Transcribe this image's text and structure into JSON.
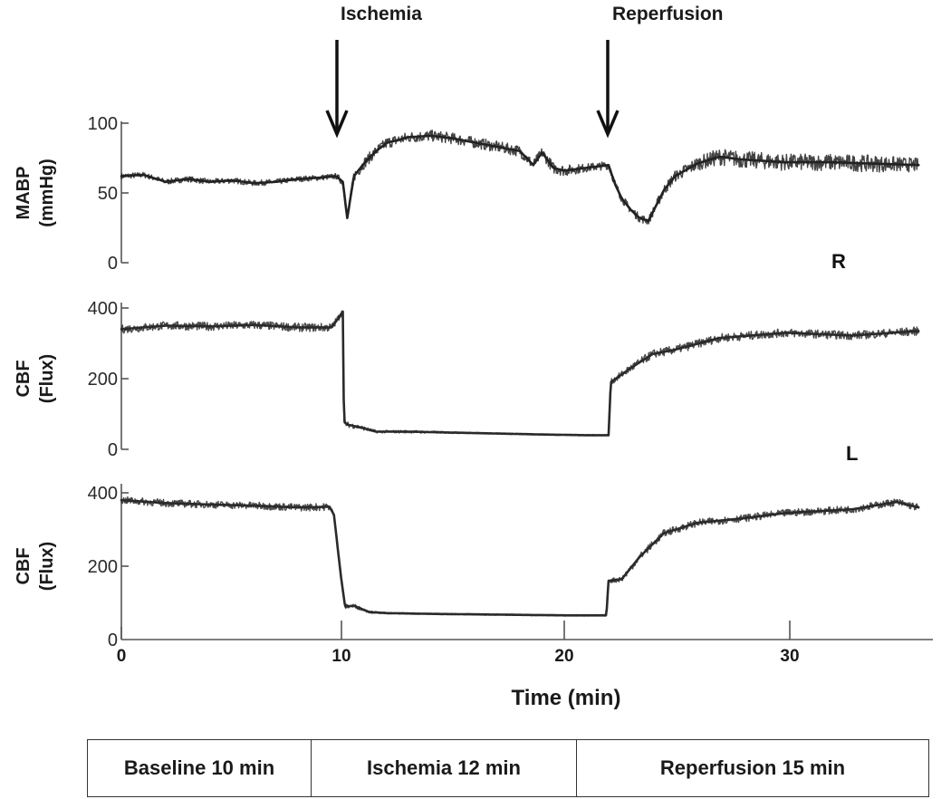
{
  "annotations": {
    "ischemia": "Ischemia",
    "reperfusion": "Reperfusion",
    "event_times_min": [
      10,
      22
    ]
  },
  "chart_data": [
    {
      "type": "line",
      "panel": "MABP",
      "ylabel_line1": "MABP",
      "ylabel_line2": "(mmHg)",
      "side_label": "R",
      "yticks": [
        "0",
        "50",
        "100"
      ],
      "ylim": [
        0,
        100
      ],
      "xlim": [
        0,
        36
      ],
      "x": [
        0,
        1,
        2,
        3,
        4,
        5,
        6,
        7,
        8,
        9,
        9.7,
        10,
        10.2,
        10.5,
        11,
        11.5,
        12,
        13,
        14,
        15,
        16,
        17,
        18,
        18.6,
        19,
        19.5,
        20,
        21,
        22,
        22.3,
        22.6,
        23,
        23.4,
        23.8,
        24.5,
        25,
        26,
        27,
        28,
        30,
        32,
        34,
        36
      ],
      "y": [
        62,
        63,
        58,
        60,
        58,
        59,
        57,
        58,
        60,
        61,
        62,
        58,
        32,
        62,
        72,
        80,
        86,
        90,
        91,
        89,
        86,
        83,
        80,
        70,
        79,
        68,
        66,
        68,
        70,
        56,
        46,
        38,
        32,
        30,
        52,
        62,
        71,
        76,
        74,
        72,
        72,
        71,
        70
      ],
      "noise": [
        2,
        2,
        2,
        2,
        2,
        2,
        2,
        2,
        2,
        2,
        2,
        3,
        3,
        4,
        4,
        4,
        4,
        4,
        4,
        4,
        4,
        4,
        4,
        4,
        4,
        4,
        4,
        3,
        3,
        3,
        3,
        3,
        3,
        3,
        4,
        4,
        5,
        6,
        6,
        6,
        6,
        6,
        5
      ],
      "color": "#222222"
    },
    {
      "type": "line",
      "panel": "CBF-R",
      "ylabel_line1": "CBF",
      "ylabel_line2": "(Flux)",
      "side_label": "L",
      "yticks": [
        "0",
        "200",
        "400"
      ],
      "ylim": [
        0,
        400
      ],
      "xlim": [
        0,
        36
      ],
      "x": [
        0,
        2,
        4,
        6,
        8,
        9.5,
        10,
        10.05,
        10.2,
        10.8,
        11.5,
        13,
        16,
        19,
        21,
        22,
        22.1,
        23,
        24,
        25,
        27,
        30,
        33,
        36
      ],
      "y": [
        340,
        350,
        348,
        352,
        345,
        345,
        390,
        78,
        70,
        62,
        50,
        50,
        46,
        42,
        40,
        40,
        190,
        230,
        270,
        282,
        315,
        330,
        322,
        335
      ],
      "noise": [
        12,
        12,
        12,
        12,
        12,
        12,
        8,
        10,
        8,
        6,
        4,
        4,
        2,
        2,
        2,
        2,
        8,
        12,
        12,
        12,
        12,
        12,
        12,
        12
      ],
      "color": "#2a2a2a"
    },
    {
      "type": "line",
      "panel": "CBF-L",
      "ylabel_line1": "CBF",
      "ylabel_line2": "(Flux)",
      "yticks": [
        "0",
        "200",
        "400"
      ],
      "ylim": [
        0,
        400
      ],
      "xlim": [
        0,
        36
      ],
      "x": [
        0,
        2,
        4,
        6,
        8,
        9.4,
        9.6,
        9.9,
        10.1,
        10.5,
        11.2,
        12,
        14,
        17,
        20,
        21.5,
        21.9,
        22,
        22.6,
        23.4,
        24.5,
        26,
        28,
        30,
        33,
        35,
        36
      ],
      "y": [
        380,
        372,
        368,
        365,
        360,
        362,
        340,
        180,
        90,
        92,
        75,
        72,
        70,
        68,
        66,
        66,
        66,
        160,
        165,
        225,
        290,
        318,
        330,
        345,
        355,
        375,
        360
      ],
      "noise": [
        10,
        10,
        10,
        10,
        10,
        10,
        8,
        4,
        6,
        6,
        3,
        2,
        2,
        2,
        2,
        2,
        2,
        6,
        8,
        10,
        10,
        10,
        10,
        10,
        10,
        10,
        10
      ],
      "color": "#2a2a2a"
    }
  ],
  "x_axis": {
    "ticks": [
      "0",
      "10",
      "20",
      "30"
    ],
    "label": "Time (min)"
  },
  "phases": [
    {
      "label": "Baseline 10 min"
    },
    {
      "label": "Ischemia 12 min"
    },
    {
      "label": "Reperfusion 15 min"
    }
  ]
}
